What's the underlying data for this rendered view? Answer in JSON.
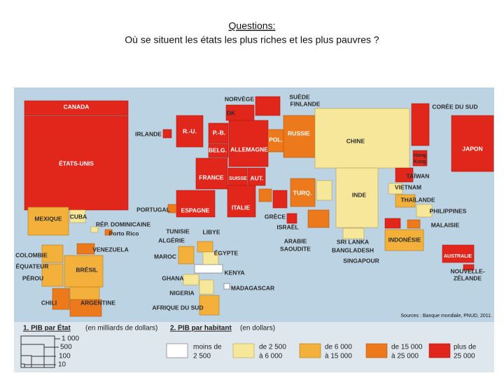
{
  "header": {
    "title": "Questions:",
    "question": "Où se situent les états les plus riches et les plus pauvres ?"
  },
  "map": {
    "labels": [
      "CANADA",
      "ÉTATS-UNIS",
      "IRLANDE",
      "R.-U.",
      "NORVÈGE",
      "DK",
      "SUÈDE",
      "FINLANDE",
      "P.-B.",
      "BELG.",
      "ALLEMAGNE",
      "POL.",
      "RUSSIE",
      "CHINE",
      "CORÉE DU SUD",
      "JAPON",
      [
        "Hong",
        "Kong"
      ],
      "FRANCE",
      "SUISSE",
      "AUT.",
      "TAÏWAN",
      "VIETNAM",
      "THAÏLANDE",
      "PHILIPPINES",
      "MALAISIE",
      "INDONÉSIE",
      "AUSTRALIE",
      [
        "NOUVELLE-",
        "ZÉLANDE"
      ],
      "TURQ.",
      "INDE",
      "PORTUGAL",
      "ESPAGNE",
      "ITALIE",
      "GRÈCE",
      "ISRAËL",
      [
        "ARABIE",
        "SAOUDITE"
      ],
      "SRI LANKA",
      "BANGLADESH",
      "SINGAPOUR",
      "MEXIQUE",
      "CUBA",
      "RÉP. DOMINICAINE",
      "Porto Rico",
      "TUNISIE",
      "LIBYE",
      "ALGÉRIE",
      "MAROC",
      "ÉGYPTE",
      "KENYA",
      "MADAGASCAR",
      "GHANA",
      "NIGERIA",
      "AFRIQUE DU SUD",
      "COLOMBIE",
      "ÉQUATEUR",
      "PÉROU",
      "VENEZUELA",
      "BRÉSIL",
      "CHILI",
      "ARGENTINE"
    ],
    "source": "Sources : Banque mondiale, PNUD, 2011."
  },
  "legend": {
    "gdp": {
      "title": "1. PIB par État",
      "unit": "(en milliards de dollars)",
      "sizes": [
        "1 000",
        "500",
        "100",
        "10"
      ]
    },
    "per_capita": {
      "title": "2. PIB par habitant",
      "unit": "(en dollars)",
      "classes": [
        [
          "moins de",
          "2 500"
        ],
        [
          "de 2 500",
          "à 6 000"
        ],
        [
          "de 6 000",
          "à 15 000"
        ],
        [
          "de 15 000",
          "à 25 000"
        ],
        [
          "plus de",
          "25 000"
        ]
      ]
    }
  }
}
